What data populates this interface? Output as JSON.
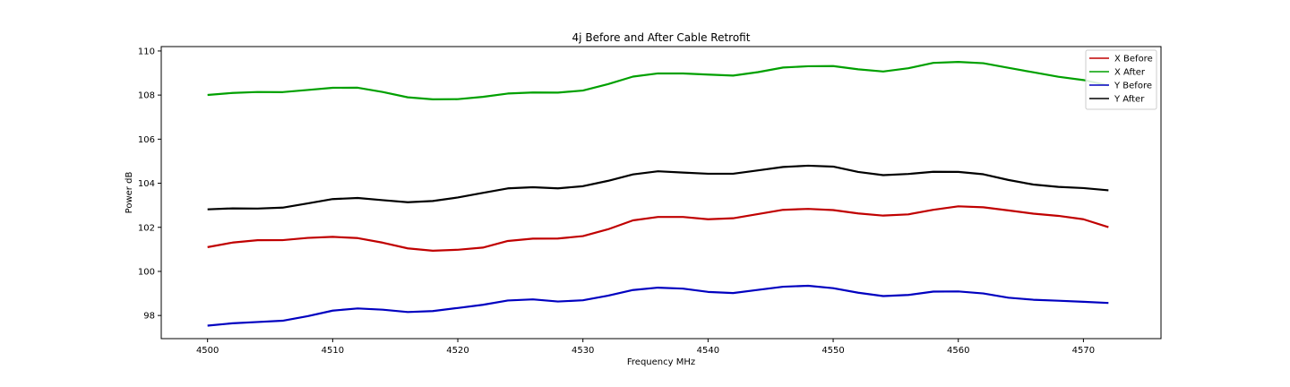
{
  "chart_data": {
    "type": "line",
    "title": "4j Before and After Cable Retrofit",
    "xlabel": "Frequency MHz",
    "ylabel": "Power dB",
    "xlim": [
      4496.3,
      4576.2
    ],
    "ylim": [
      96.95,
      110.2
    ],
    "xticks": [
      4500,
      4510,
      4520,
      4530,
      4540,
      4550,
      4560,
      4570
    ],
    "yticks": [
      98,
      100,
      102,
      104,
      106,
      108,
      110
    ],
    "grid": false,
    "legend_position": "top-right",
    "x": [
      4500,
      4502,
      4504,
      4506,
      4508,
      4510,
      4512,
      4514,
      4516,
      4518,
      4520,
      4522,
      4524,
      4526,
      4528,
      4530,
      4532,
      4534,
      4536,
      4538,
      4540,
      4542,
      4544,
      4546,
      4548,
      4550,
      4552,
      4554,
      4556,
      4558,
      4560,
      4562,
      4564,
      4566,
      4568,
      4570,
      4572
    ],
    "series": [
      {
        "name": "X Before",
        "color": "#c00000",
        "values": [
          101.1,
          101.3,
          101.4,
          101.4,
          101.5,
          101.55,
          101.5,
          101.3,
          101.05,
          100.95,
          101.0,
          101.1,
          101.4,
          101.5,
          101.5,
          101.6,
          101.9,
          102.3,
          102.45,
          102.45,
          102.35,
          102.4,
          102.6,
          102.8,
          102.85,
          102.8,
          102.65,
          102.55,
          102.6,
          102.8,
          102.95,
          102.9,
          102.75,
          102.6,
          102.5,
          102.35,
          102.0
        ]
      },
      {
        "name": "X After",
        "color": "#00a000",
        "values": [
          108.0,
          108.1,
          108.15,
          108.15,
          108.25,
          108.35,
          108.35,
          108.15,
          107.9,
          107.8,
          107.8,
          107.9,
          108.05,
          108.1,
          108.1,
          108.2,
          108.5,
          108.85,
          109.0,
          109.0,
          108.95,
          108.9,
          109.05,
          109.25,
          109.3,
          109.3,
          109.15,
          109.05,
          109.2,
          109.45,
          109.5,
          109.45,
          109.25,
          109.05,
          108.85,
          108.7,
          108.45
        ]
      },
      {
        "name": "Y Before",
        "color": "#0000c0",
        "values": [
          97.55,
          97.65,
          97.7,
          97.75,
          97.95,
          98.2,
          98.3,
          98.25,
          98.15,
          98.2,
          98.35,
          98.5,
          98.7,
          98.75,
          98.65,
          98.7,
          98.9,
          99.15,
          99.25,
          99.2,
          99.05,
          99.0,
          99.15,
          99.3,
          99.35,
          99.25,
          99.05,
          98.9,
          98.95,
          99.1,
          99.1,
          99.0,
          98.8,
          98.7,
          98.65,
          98.6,
          98.55
        ]
      },
      {
        "name": "Y After",
        "color": "#000000",
        "values": [
          102.8,
          102.85,
          102.85,
          102.9,
          103.1,
          103.3,
          103.35,
          103.25,
          103.15,
          103.2,
          103.35,
          103.55,
          103.75,
          103.8,
          103.75,
          103.85,
          104.1,
          104.4,
          104.55,
          104.5,
          104.45,
          104.45,
          104.6,
          104.75,
          104.8,
          104.75,
          104.5,
          104.35,
          104.4,
          104.5,
          104.5,
          104.4,
          104.15,
          103.95,
          103.85,
          103.8,
          103.7
        ]
      }
    ]
  }
}
